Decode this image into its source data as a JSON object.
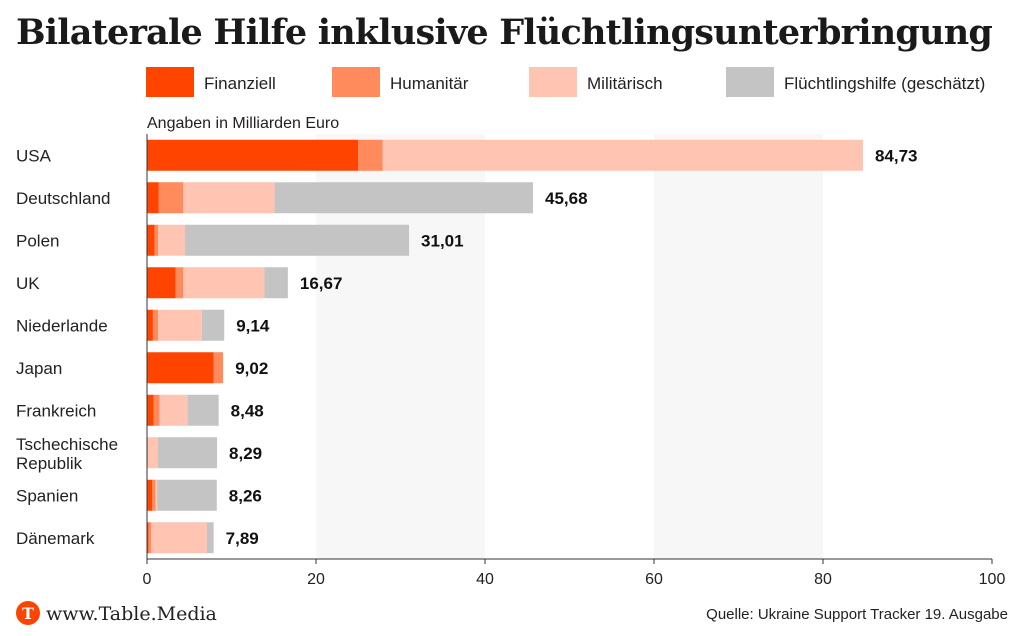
{
  "chart_data": {
    "type": "bar",
    "orientation": "horizontal",
    "stacked": true,
    "title": "Bilaterale Hilfe inklusive Flüchtlingsunterbringung",
    "subtitle": "Angaben in Milliarden Euro",
    "categories": [
      "USA",
      "Deutschland",
      "Polen",
      "UK",
      "Niederlande",
      "Japan",
      "Frankreich",
      "Tschechische Republik",
      "Spanien",
      "Dänemark"
    ],
    "series": [
      {
        "name": "Finanziell",
        "color": "#ff4400",
        "values": [
          25.0,
          1.4,
          0.9,
          3.4,
          0.7,
          7.9,
          0.8,
          0.0,
          0.6,
          0.2
        ]
      },
      {
        "name": "Humanitär",
        "color": "#ff8a5c",
        "values": [
          2.9,
          2.9,
          0.4,
          0.9,
          0.6,
          1.1,
          0.7,
          0.1,
          0.4,
          0.3
        ]
      },
      {
        "name": "Militärisch",
        "color": "#ffc4b2",
        "values": [
          56.83,
          10.8,
          3.2,
          9.6,
          5.2,
          0.02,
          3.3,
          1.2,
          0.2,
          6.6
        ]
      },
      {
        "name": "Flüchtlingshilfe (geschätzt)",
        "color": "#c4c4c4",
        "values": [
          0.0,
          30.58,
          26.51,
          2.77,
          2.64,
          0.0,
          3.68,
          6.99,
          7.06,
          0.79
        ]
      }
    ],
    "totals": [
      "84,73",
      "45,68",
      "31,01",
      "16,67",
      "9,14",
      "9,02",
      "8,48",
      "8,29",
      "8,26",
      "7,89"
    ],
    "xlim": [
      0,
      100
    ],
    "xticks": [
      0,
      20,
      40,
      60,
      80,
      100
    ],
    "legend_position": "top",
    "background_bands": true
  },
  "footer": {
    "brand_text": "www.Table.Media",
    "logo_letter": "T",
    "logo_color": "#ff4400",
    "source": "Quelle: Ukraine Support Tracker 19. Ausgabe"
  }
}
